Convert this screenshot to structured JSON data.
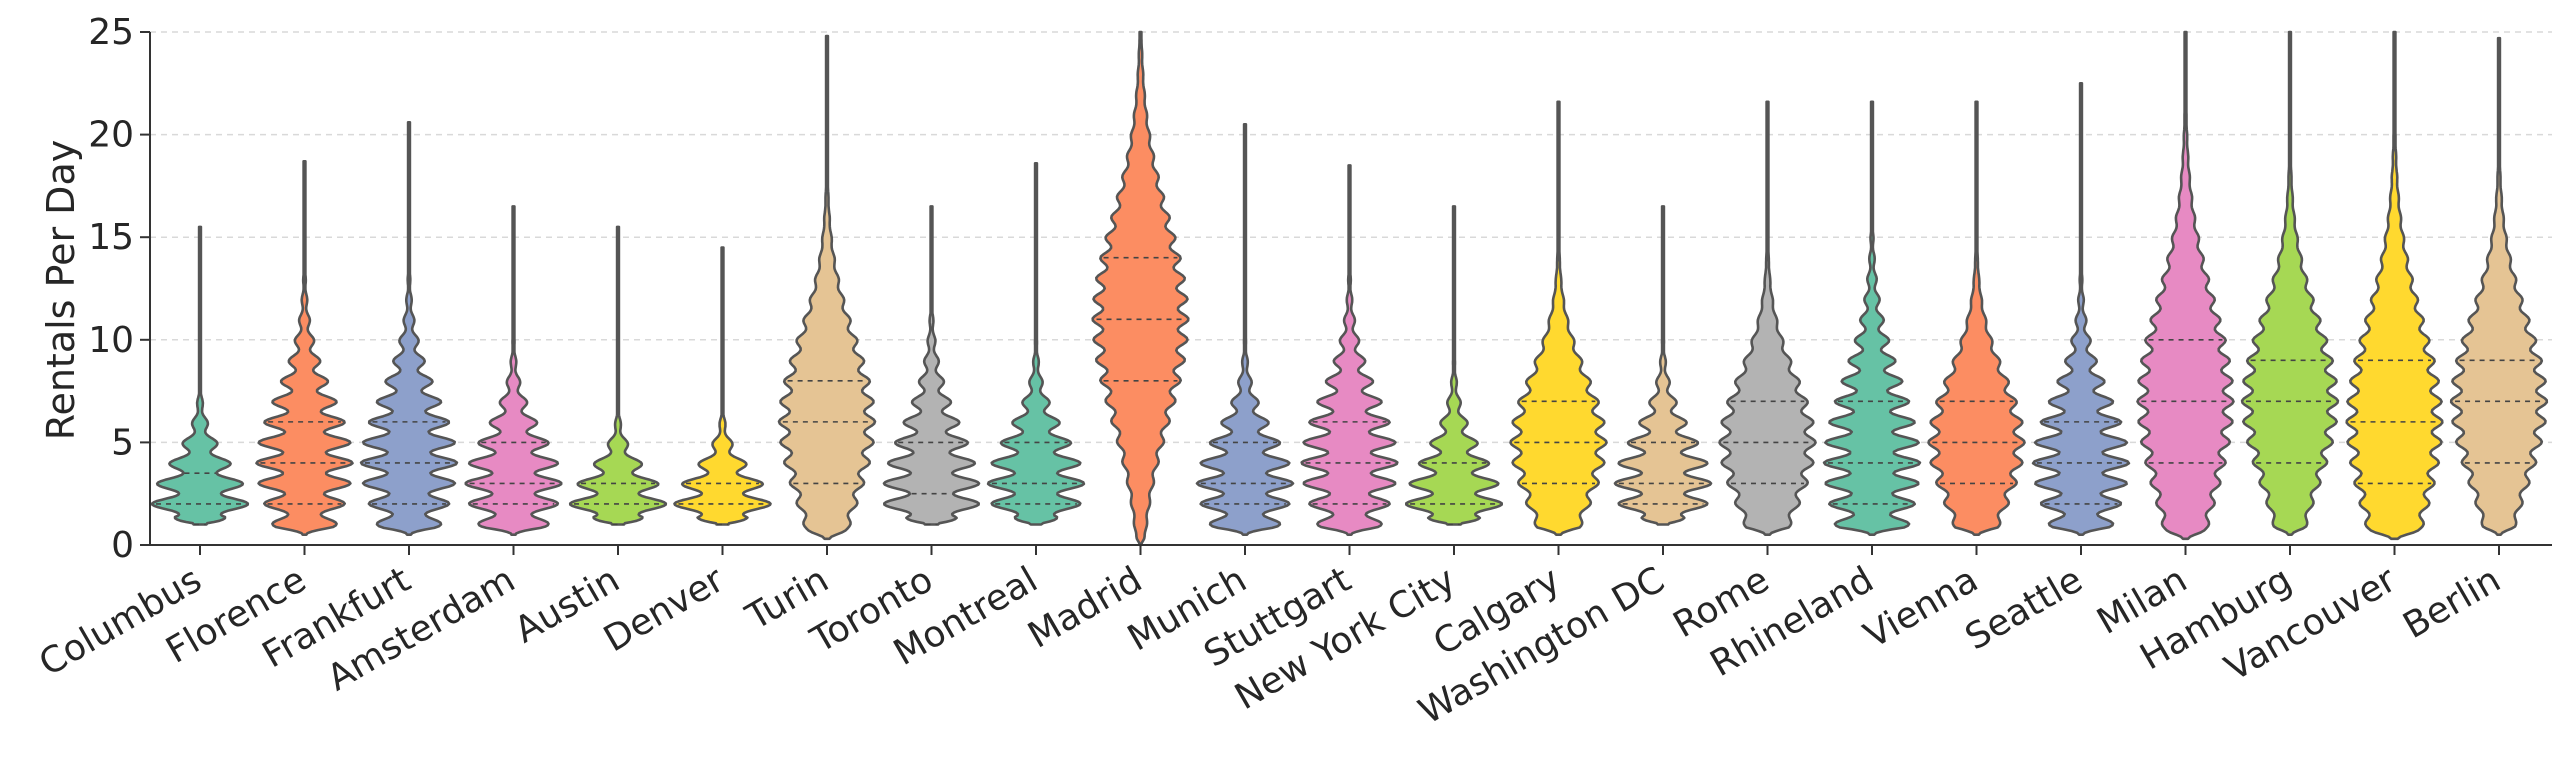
{
  "chart_data": {
    "type": "violin",
    "title": "",
    "xlabel": "",
    "ylabel": "Rentals Per Day",
    "ylim": [
      0,
      25
    ],
    "yticks": [
      "0",
      "5",
      "10",
      "15",
      "20",
      "25"
    ],
    "grid": "horizontal dashed",
    "legend": "none",
    "categories": [
      "Columbus",
      "Florence",
      "Frankfurt",
      "Amsterdam",
      "Austin",
      "Denver",
      "Turin",
      "Toronto",
      "Montreal",
      "Madrid",
      "Munich",
      "Stuttgart",
      "New York City",
      "Calgary",
      "Washington DC",
      "Rome",
      "Rhineland",
      "Vienna",
      "Seattle",
      "Milan",
      "Hamburg",
      "Vancouver",
      "Berlin"
    ],
    "colors": [
      "#66c2a5",
      "#fc8d62",
      "#8da0cb",
      "#e78ac3",
      "#a6d854",
      "#ffd92f",
      "#e5c494",
      "#b3b3b3",
      "#66c2a5",
      "#fc8d62",
      "#8da0cb",
      "#e78ac3",
      "#a6d854",
      "#ffd92f",
      "#e5c494",
      "#b3b3b3",
      "#66c2a5",
      "#fc8d62",
      "#8da0cb",
      "#e78ac3",
      "#a6d854",
      "#ffd92f",
      "#e5c494"
    ],
    "series": [
      {
        "min": 1,
        "max": 15.5,
        "q1": 1,
        "median": 2,
        "q3": 3.5
      },
      {
        "min": 0.5,
        "max": 18.7,
        "q1": 2,
        "median": 4,
        "q3": 6
      },
      {
        "min": 0.5,
        "max": 20.6,
        "q1": 2,
        "median": 4,
        "q3": 6
      },
      {
        "min": 0.5,
        "max": 16.5,
        "q1": 2,
        "median": 3,
        "q3": 5
      },
      {
        "min": 1,
        "max": 15.5,
        "q1": 1,
        "median": 2,
        "q3": 3
      },
      {
        "min": 1,
        "max": 14.5,
        "q1": 1,
        "median": 2,
        "q3": 3
      },
      {
        "min": 0.3,
        "max": 24.8,
        "q1": 3,
        "median": 6,
        "q3": 8
      },
      {
        "min": 1,
        "max": 16.5,
        "q1": 1,
        "median": 2.5,
        "q3": 5
      },
      {
        "min": 1,
        "max": 18.6,
        "q1": 2,
        "median": 3,
        "q3": 5
      },
      {
        "min": 0,
        "max": 25,
        "q1": 8,
        "median": 11,
        "q3": 14
      },
      {
        "min": 0.5,
        "max": 20.5,
        "q1": 2,
        "median": 3,
        "q3": 5
      },
      {
        "min": 0.5,
        "max": 18.5,
        "q1": 2,
        "median": 4,
        "q3": 6
      },
      {
        "min": 1,
        "max": 16.5,
        "q1": 1,
        "median": 2,
        "q3": 4
      },
      {
        "min": 0.5,
        "max": 21.6,
        "q1": 3,
        "median": 5,
        "q3": 7
      },
      {
        "min": 1,
        "max": 16.5,
        "q1": 2,
        "median": 3,
        "q3": 5
      },
      {
        "min": 0.5,
        "max": 21.6,
        "q1": 3,
        "median": 5,
        "q3": 7
      },
      {
        "min": 0.5,
        "max": 21.6,
        "q1": 2,
        "median": 4,
        "q3": 7
      },
      {
        "min": 0.5,
        "max": 21.6,
        "q1": 3,
        "median": 5,
        "q3": 7
      },
      {
        "min": 0.5,
        "max": 22.5,
        "q1": 2,
        "median": 4,
        "q3": 6
      },
      {
        "min": 0.3,
        "max": 25,
        "q1": 4,
        "median": 7,
        "q3": 10
      },
      {
        "min": 0.5,
        "max": 25,
        "q1": 4,
        "median": 7,
        "q3": 9
      },
      {
        "min": 0.3,
        "max": 25,
        "q1": 3,
        "median": 6,
        "q3": 9
      },
      {
        "min": 0.5,
        "max": 24.7,
        "q1": 4,
        "median": 7,
        "q3": 9
      }
    ]
  }
}
